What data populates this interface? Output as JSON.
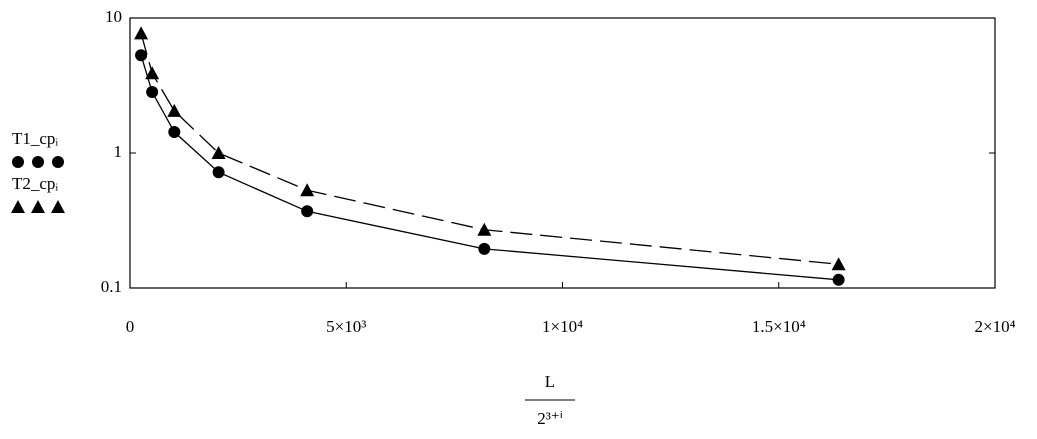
{
  "chart_data": {
    "type": "line",
    "x": [
      256,
      512,
      1024,
      2048,
      4096,
      8192,
      16384
    ],
    "series": [
      {
        "name": "T1_cpᵢ",
        "color": "#000000",
        "marker": "circle",
        "dashed": false,
        "values": [
          5.3,
          2.83,
          1.43,
          0.72,
          0.37,
          0.195,
          0.115
        ]
      },
      {
        "name": "T2_cpᵢ",
        "color": "#000000",
        "marker": "triangle",
        "dashed": true,
        "values": [
          7.7,
          3.9,
          2.05,
          1.0,
          0.53,
          0.27,
          0.15
        ]
      }
    ],
    "x_label": {
      "numerator": "L",
      "denominator": "2³⁺ⁱ"
    },
    "xlim": [
      0,
      20000
    ],
    "xticks": [
      0,
      {
        "value": 5000,
        "label": "5×10³"
      },
      {
        "value": 10000,
        "label": "1×10⁴"
      },
      {
        "value": 15000,
        "label": "1.5×10⁴"
      },
      {
        "value": 20000,
        "label": "2×10⁴"
      }
    ],
    "ylim": [
      0.1,
      10
    ],
    "yticks": [
      0.1,
      1,
      10
    ],
    "log_y": true
  }
}
